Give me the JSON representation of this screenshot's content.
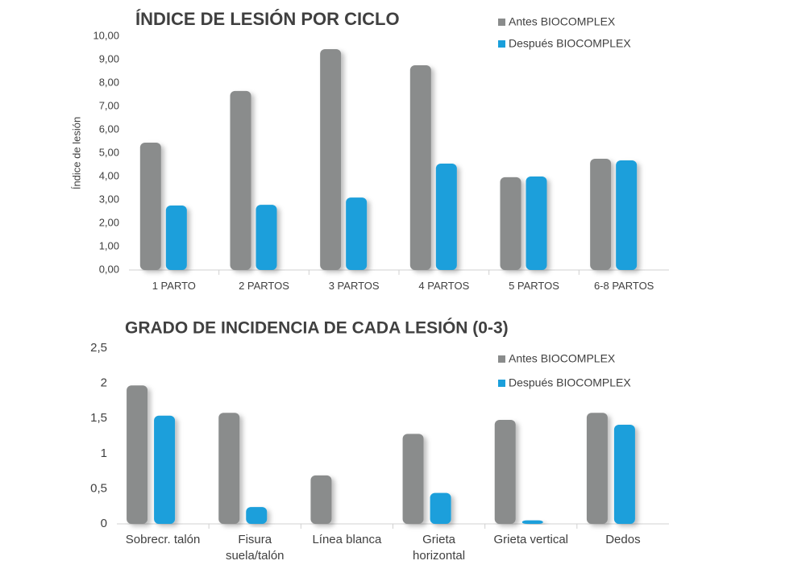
{
  "chart_data": [
    {
      "type": "bar",
      "title": "ÍNDICE DE LESIÓN POR CICLO",
      "y_label": "Índice de lesión",
      "categories": [
        "1 PARTO",
        "2 PARTOS",
        "3 PARTOS",
        "4 PARTOS",
        "5 PARTOS",
        "6-8 PARTOS"
      ],
      "series": [
        {
          "name": "Antes BIOCOMPLEX",
          "color": "#8a8c8c",
          "values": [
            5.45,
            7.66,
            9.45,
            8.76,
            3.97,
            4.76
          ]
        },
        {
          "name": "Después BIOCOMPLEX",
          "color": "#1a9fdb",
          "values": [
            2.76,
            2.79,
            3.1,
            4.55,
            4.0,
            4.69
          ]
        }
      ],
      "ylim": [
        0,
        10
      ],
      "yticks": [
        {
          "value": 0,
          "label": "0,00"
        },
        {
          "value": 1,
          "label": "1,00"
        },
        {
          "value": 2,
          "label": "2,00"
        },
        {
          "value": 3,
          "label": "3,00"
        },
        {
          "value": 4,
          "label": "4,00"
        },
        {
          "value": 5,
          "label": "5,00"
        },
        {
          "value": 6,
          "label": "6,00"
        },
        {
          "value": 7,
          "label": "7,00"
        },
        {
          "value": 8,
          "label": "8,00"
        },
        {
          "value": 9,
          "label": "9,00"
        },
        {
          "value": 10,
          "label": "10,00"
        }
      ],
      "grid": false
    },
    {
      "type": "bar",
      "title": "GRADO DE INCIDENCIA DE CADA LESIÓN (0-3)",
      "categories": [
        "Sobrecr. talón",
        "Fisura\nsuela/talón",
        "Línea blanca",
        "Grieta\nhorizontal",
        "Grieta vertical",
        "Dedos"
      ],
      "series": [
        {
          "name": "Antes BIOCOMPLEX",
          "color": "#8a8c8c",
          "values": [
            1.97,
            1.58,
            0.69,
            1.28,
            1.48,
            1.58
          ]
        },
        {
          "name": "Después BIOCOMPLEX",
          "color": "#1a9fdb",
          "values": [
            1.54,
            0.24,
            0,
            0.44,
            0.05,
            1.41
          ]
        }
      ],
      "ylim": [
        0,
        2.5
      ],
      "yticks": [
        0,
        {
          "value": 0.5,
          "label": "0,5"
        },
        1,
        {
          "value": 1.5,
          "label": "1,5"
        },
        2,
        {
          "value": 2.5,
          "label": "2,5"
        }
      ],
      "grid": false
    }
  ]
}
